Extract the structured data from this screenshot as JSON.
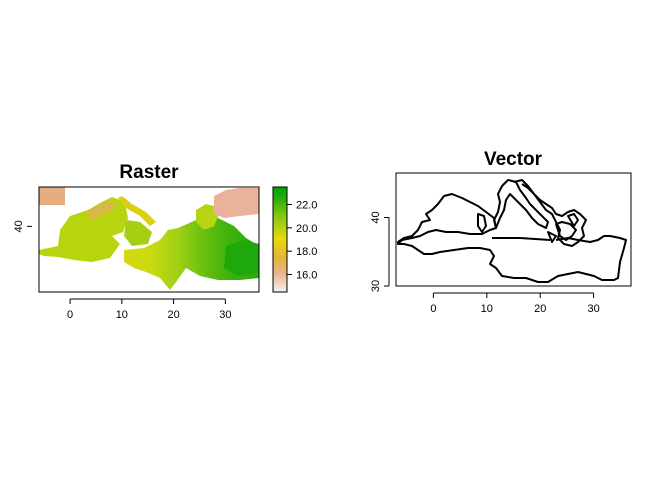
{
  "chart_data": [
    {
      "type": "heatmap",
      "title": "Raster",
      "xlabel": "",
      "ylabel": "",
      "xlim": [
        -6,
        36.5
      ],
      "ylim": [
        30,
        46
      ],
      "x_ticks": [
        0,
        10,
        20,
        30
      ],
      "y_ticks": [
        40
      ],
      "grid": false,
      "legend": {
        "type": "colorbar",
        "placement": "right",
        "range": [
          14.5,
          23.5
        ],
        "ticks": [
          {
            "value": 16.0,
            "label": "16.0"
          },
          {
            "value": 18.0,
            "label": "18.0"
          },
          {
            "value": 20.0,
            "label": "20.0"
          },
          {
            "value": 22.0,
            "label": "22.0"
          }
        ],
        "colors": [
          "#f2f2f2",
          "#eab48f",
          "#e6b53a",
          "#e8d80c",
          "#a8cf12",
          "#5cbc0a",
          "#1aa70b",
          "#00a600"
        ]
      }
    },
    {
      "type": "line",
      "title": "Vector",
      "xlabel": "",
      "ylabel": "",
      "xlim": [
        -7,
        37
      ],
      "ylim": [
        30,
        46.5
      ],
      "x_ticks": [
        0,
        10,
        20,
        30
      ],
      "y_ticks": [
        30,
        40
      ],
      "grid": false
    }
  ]
}
